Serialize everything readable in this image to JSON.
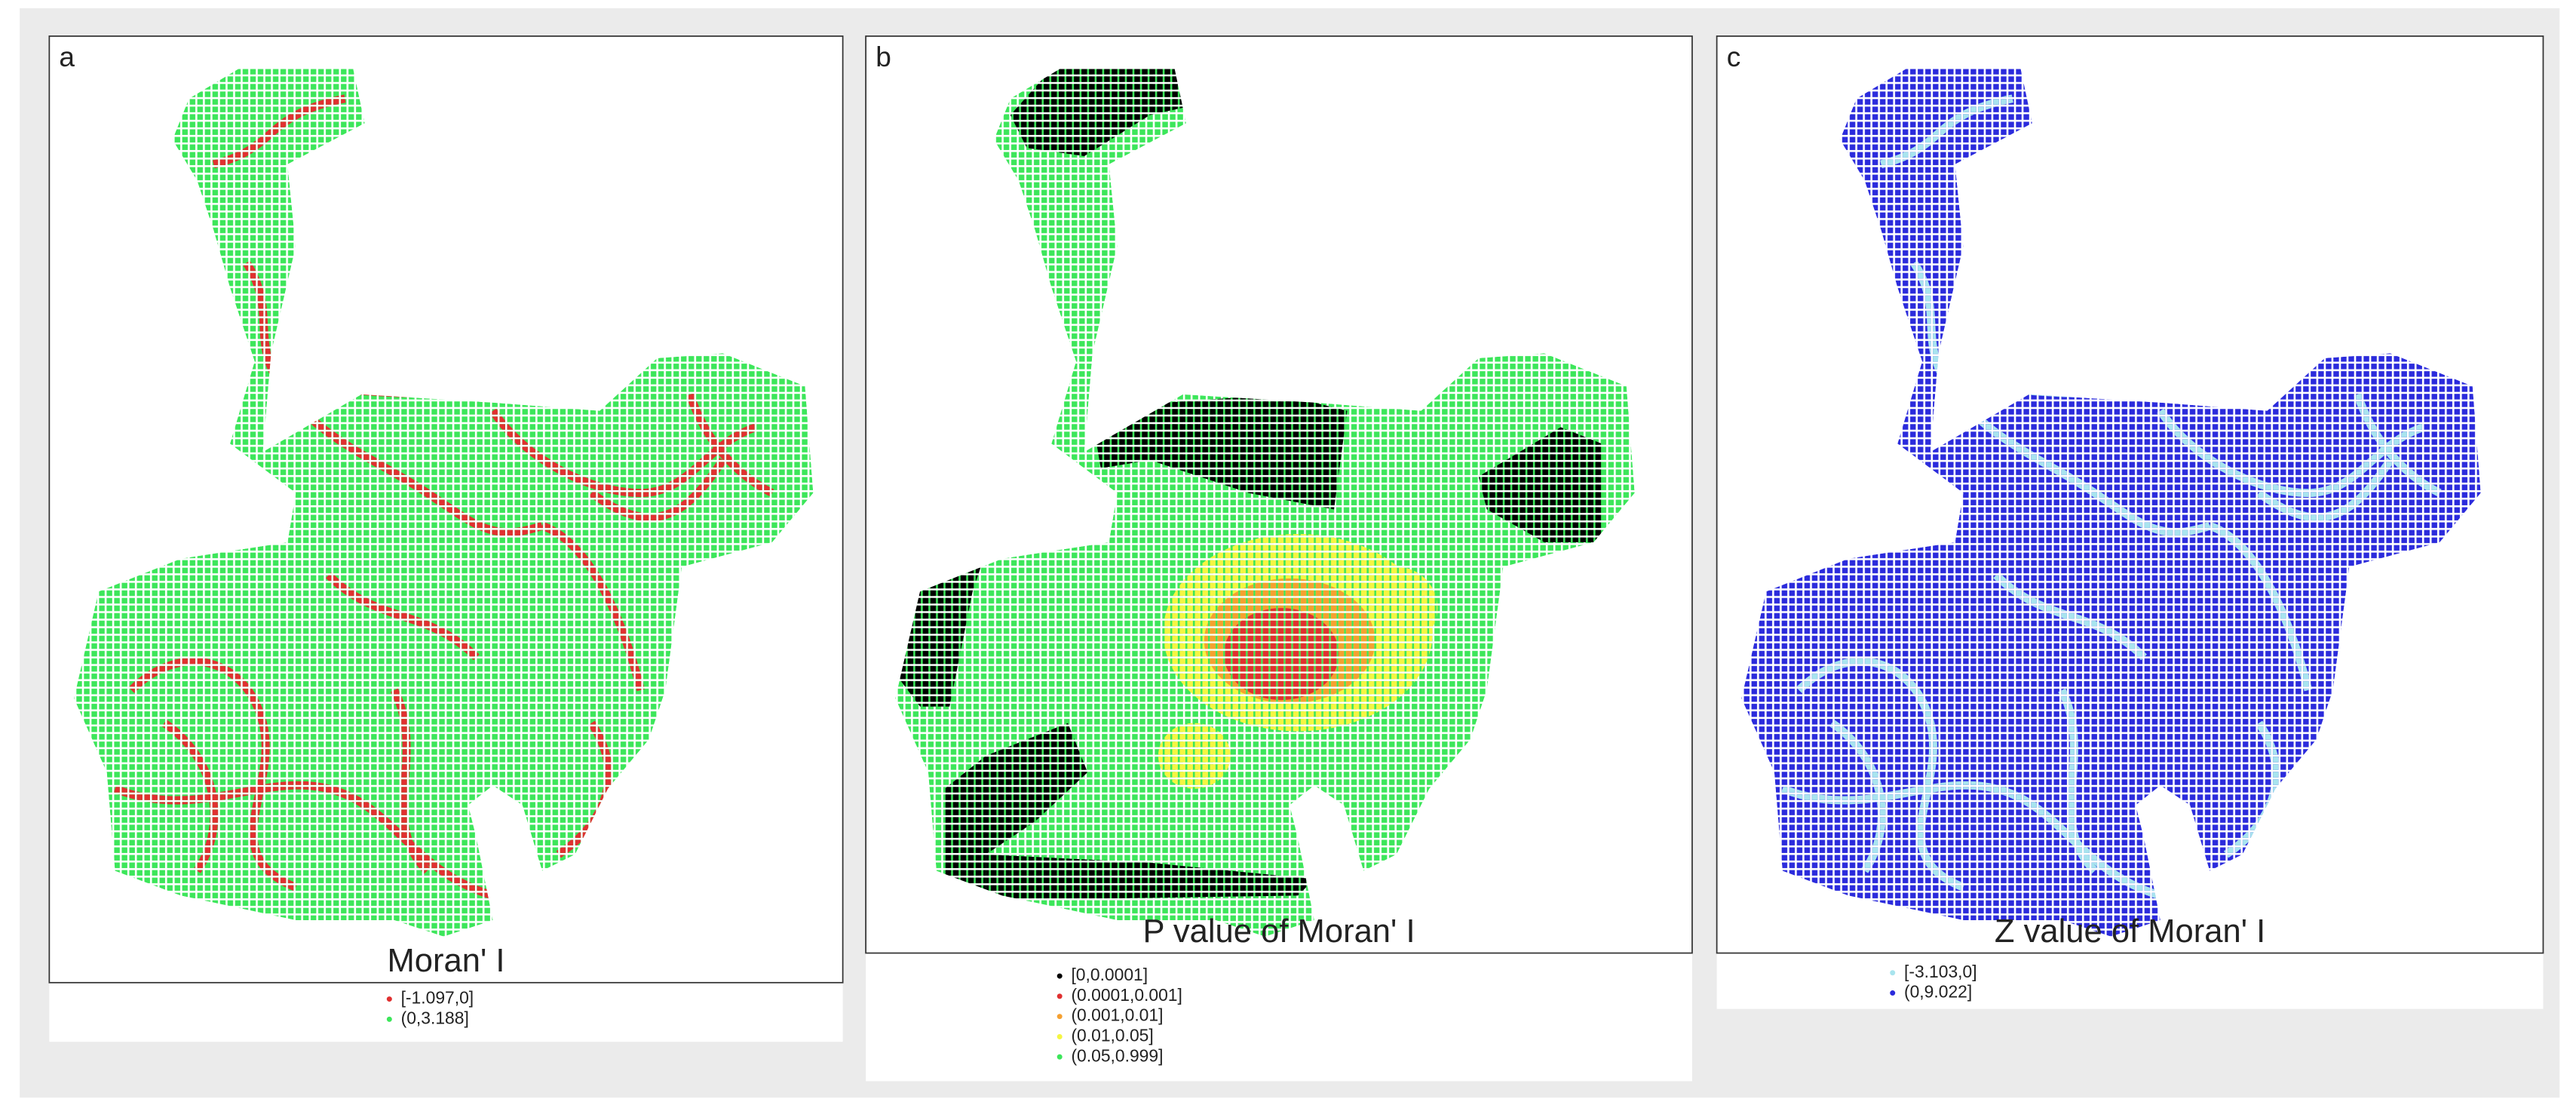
{
  "panels": [
    {
      "label": "a",
      "title": "Moran' I",
      "legend": [
        {
          "label": "[-1.097,0]",
          "color": "#e03030"
        },
        {
          "label": "(0,3.188]",
          "color": "#3ce65a"
        }
      ]
    },
    {
      "label": "b",
      "title": "P value of Moran' I",
      "legend": [
        {
          "label": "[0,0.0001]",
          "color": "#000000"
        },
        {
          "label": "(0.0001,0.001]",
          "color": "#e03030"
        },
        {
          "label": "(0.001,0.01]",
          "color": "#f5a030"
        },
        {
          "label": "(0.01,0.05]",
          "color": "#f5f542"
        },
        {
          "label": "(0.05,0.999]",
          "color": "#3ce65a"
        }
      ]
    },
    {
      "label": "c",
      "title": "Z value of Moran' I",
      "legend": [
        {
          "label": "[-3.103,0]",
          "color": "#a8e4ee"
        },
        {
          "label": "(0,9.022]",
          "color": "#2b2bdc"
        }
      ]
    }
  ]
}
